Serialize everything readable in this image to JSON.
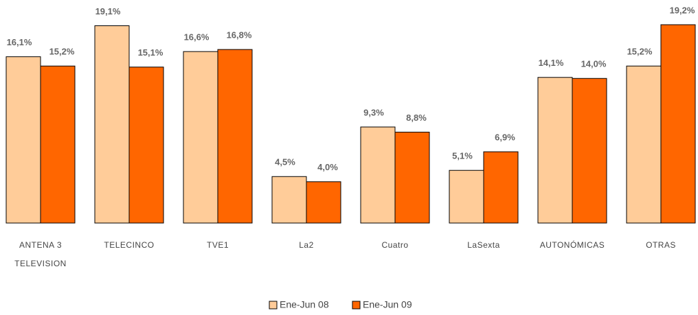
{
  "chart_data": {
    "type": "bar",
    "categories": [
      "ANTENA 3 TELEVISION",
      "TELECINCO",
      "TVE1",
      "La2",
      "Cuatro",
      "LaSexta",
      "AUTONÓMICAS",
      "OTRAS"
    ],
    "series": [
      {
        "name": "Ene-Jun 08",
        "color": "#FFCC99",
        "values": [
          16.1,
          19.1,
          16.6,
          4.5,
          9.3,
          5.1,
          14.1,
          15.2
        ],
        "value_labels": [
          "16,1%",
          "19,1%",
          "16,6%",
          "4,5%",
          "9,3%",
          "5,1%",
          "14,1%",
          "15,2%"
        ]
      },
      {
        "name": "Ene-Jun 09",
        "color": "#FF6600",
        "values": [
          15.2,
          15.1,
          16.8,
          4.0,
          8.8,
          6.9,
          14.0,
          19.2
        ],
        "value_labels": [
          "15,2%",
          "15,1%",
          "16,8%",
          "4,0%",
          "8,8%",
          "6,9%",
          "14,0%",
          "19,2%"
        ]
      }
    ],
    "legend": "bottom"
  }
}
